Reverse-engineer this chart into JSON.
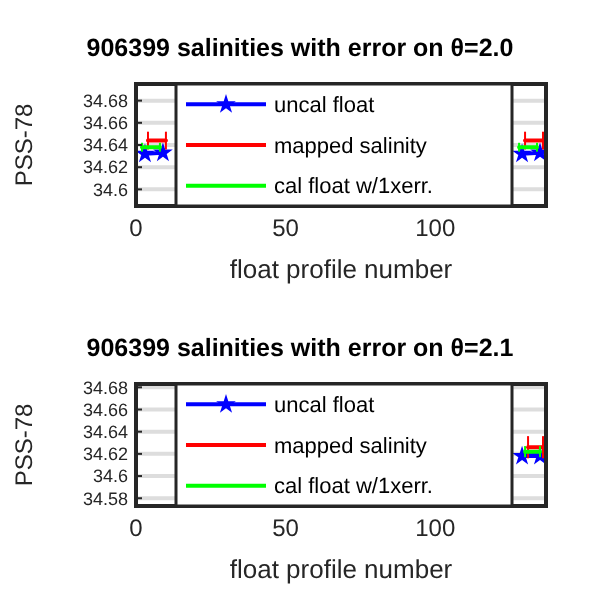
{
  "chart_data": [
    {
      "type": "line",
      "title": "906399 salinities with error on θ=2.0",
      "xlabel": "float profile number",
      "ylabel": "PSS-78",
      "xlim": [
        0,
        137
      ],
      "ylim": [
        34.585,
        34.695
      ],
      "xticks": [
        0,
        50,
        100
      ],
      "yticks": [
        34.6,
        34.62,
        34.64,
        34.66,
        34.68
      ],
      "grid": "y",
      "legend": "left",
      "series": [
        {
          "name": "uncal float",
          "color": "#0000ff",
          "marker": "star",
          "x": [
            3,
            9,
            70,
            129,
            135
          ],
          "values": [
            34.632,
            34.633,
            null,
            34.632,
            34.633
          ]
        },
        {
          "name": "mapped salinity",
          "color": "#ff0000",
          "marker": "none",
          "x": [
            4,
            10,
            70,
            130,
            136
          ],
          "values": [
            34.644,
            34.644,
            null,
            34.644,
            34.644
          ],
          "errors": [
            0.008,
            0.008,
            null,
            0.008,
            0.008
          ]
        },
        {
          "name": "cal float w/1xerr.",
          "color": "#00ff00",
          "marker": "none",
          "x": [
            2,
            8,
            70,
            128,
            134
          ],
          "values": [
            34.638,
            34.638,
            null,
            34.638,
            34.638
          ],
          "errors": [
            0.004,
            0.004,
            null,
            0.004,
            0.004
          ]
        }
      ]
    },
    {
      "type": "line",
      "title": "906399 salinities with error on θ=2.1",
      "xlabel": "float profile number",
      "ylabel": "PSS-78",
      "xlim": [
        0,
        137
      ],
      "ylim": [
        34.573,
        34.683
      ],
      "xticks": [
        0,
        50,
        100
      ],
      "yticks": [
        34.58,
        34.6,
        34.62,
        34.64,
        34.66,
        34.68
      ],
      "grid": "y",
      "legend": "left",
      "series": [
        {
          "name": "uncal float",
          "color": "#0000ff",
          "marker": "star",
          "x": [
            129,
            135
          ],
          "values": [
            34.618,
            34.618
          ]
        },
        {
          "name": "mapped salinity",
          "color": "#ff0000",
          "marker": "none",
          "x": [
            131,
            136
          ],
          "values": [
            34.626,
            34.626
          ],
          "errors": [
            0.01,
            0.01
          ]
        },
        {
          "name": "cal float w/1xerr.",
          "color": "#00ff00",
          "marker": "none",
          "x": [
            130,
            135
          ],
          "values": [
            34.622,
            34.622
          ],
          "errors": [
            0.005,
            0.005
          ]
        }
      ]
    }
  ]
}
